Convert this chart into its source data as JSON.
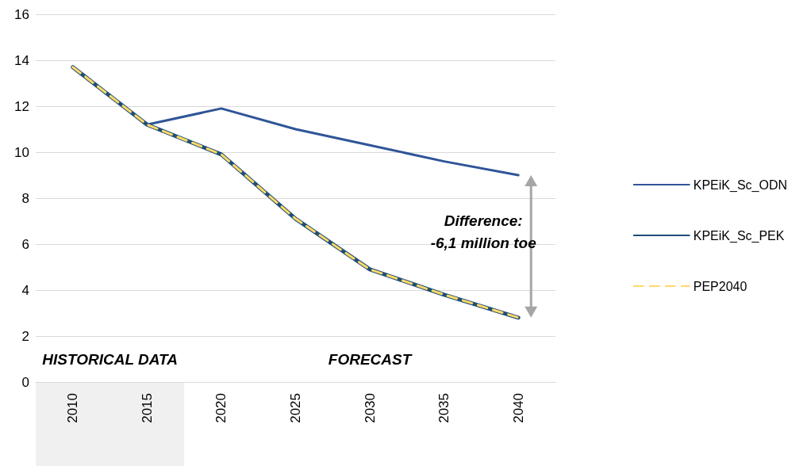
{
  "chart_data": {
    "type": "line",
    "categories": [
      "2010",
      "2015",
      "2020",
      "2025",
      "2030",
      "2035",
      "2040"
    ],
    "series": [
      {
        "name": "KPEiK_Sc_ODN",
        "color": "#2f5597",
        "values": [
          13.7,
          11.2,
          11.9,
          11.0,
          10.3,
          9.6,
          9.0
        ],
        "line_style": "solid"
      },
      {
        "name": "KPEiK_Sc_PEK",
        "color": "#1f4e79",
        "values": [
          13.7,
          11.2,
          9.9,
          7.1,
          4.9,
          3.8,
          2.8
        ],
        "line_style": "solid"
      },
      {
        "name": "PEP2040",
        "color": "#ffd966",
        "values": [
          13.7,
          11.2,
          9.9,
          7.1,
          4.9,
          3.8,
          2.8
        ],
        "line_style": "dashed"
      }
    ],
    "ylim": [
      0,
      16
    ],
    "yticks": [
      0,
      2,
      4,
      6,
      8,
      10,
      12,
      14,
      16
    ],
    "grid": "y",
    "legend": "right",
    "marker": "none",
    "annotations": [
      "HISTORICAL DATA",
      "FORECAST",
      "Difference:\n-6,1 million toe"
    ]
  }
}
